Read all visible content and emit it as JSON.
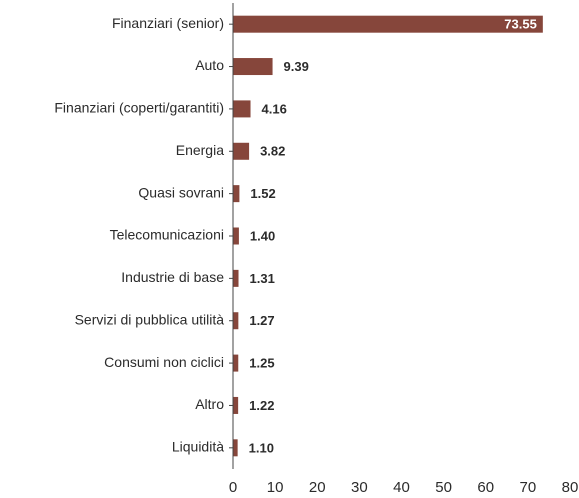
{
  "chart_data": {
    "type": "hbar",
    "categories": [
      "Finanziari (senior)",
      "Auto",
      "Finanziari (coperti/garantiti)",
      "Energia",
      "Quasi sovrani",
      "Telecomunicazioni",
      "Industrie di base",
      "Servizi di pubblica utilità",
      "Consumi non ciclici",
      "Altro",
      "Liquidità"
    ],
    "values": [
      73.55,
      9.39,
      4.16,
      3.82,
      1.52,
      1.4,
      1.31,
      1.27,
      1.25,
      1.22,
      1.1
    ],
    "value_labels": [
      "73.55",
      "9.39",
      "4.16",
      "3.82",
      "1.52",
      "1.40",
      "1.31",
      "1.27",
      "1.25",
      "1.22",
      "1.10"
    ],
    "color": "#86463b",
    "xlim": [
      0,
      80
    ],
    "xticks": [
      0,
      10,
      20,
      30,
      40,
      50,
      60,
      70,
      80
    ]
  }
}
